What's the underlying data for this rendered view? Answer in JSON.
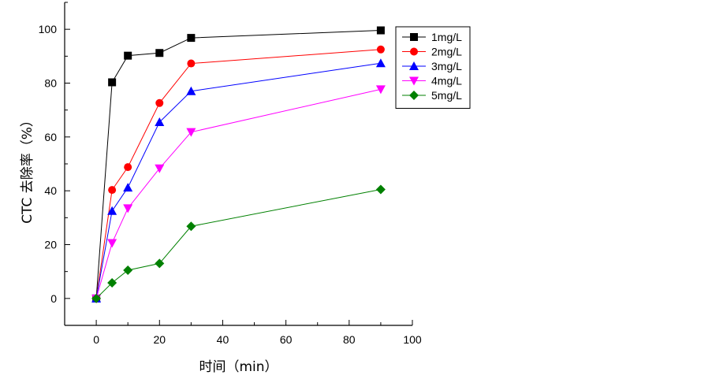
{
  "chart_data": {
    "type": "line",
    "xlabel": "时间（min）",
    "ylabel": "CTC 去除率（%）",
    "xlim": [
      -10,
      100
    ],
    "ylim": [
      -10,
      110
    ],
    "xticks": [
      0,
      20,
      40,
      60,
      80,
      100
    ],
    "yticks": [
      0,
      20,
      40,
      60,
      80,
      100
    ],
    "grid": false,
    "legend_position": "top-right",
    "x": [
      0,
      5,
      10,
      20,
      30,
      90
    ],
    "series": [
      {
        "name": "1mg/L",
        "color": "#000000",
        "marker": "square",
        "values": [
          0,
          80.3,
          90.2,
          91.2,
          96.8,
          99.6
        ]
      },
      {
        "name": "2mg/L",
        "color": "#ff0000",
        "marker": "circle",
        "values": [
          0,
          40.3,
          48.8,
          72.6,
          87.3,
          92.5
        ]
      },
      {
        "name": "3mg/L",
        "color": "#0000ff",
        "marker": "triangle-up",
        "values": [
          0,
          32.5,
          41.2,
          65.5,
          77.0,
          87.4
        ]
      },
      {
        "name": "4mg/L",
        "color": "#ff00ff",
        "marker": "triangle-down",
        "values": [
          0,
          20.6,
          33.5,
          48.3,
          61.8,
          77.7
        ]
      },
      {
        "name": "5mg/L",
        "color": "#008000",
        "marker": "diamond",
        "values": [
          0,
          5.8,
          10.5,
          13.0,
          26.8,
          40.5
        ]
      }
    ]
  }
}
